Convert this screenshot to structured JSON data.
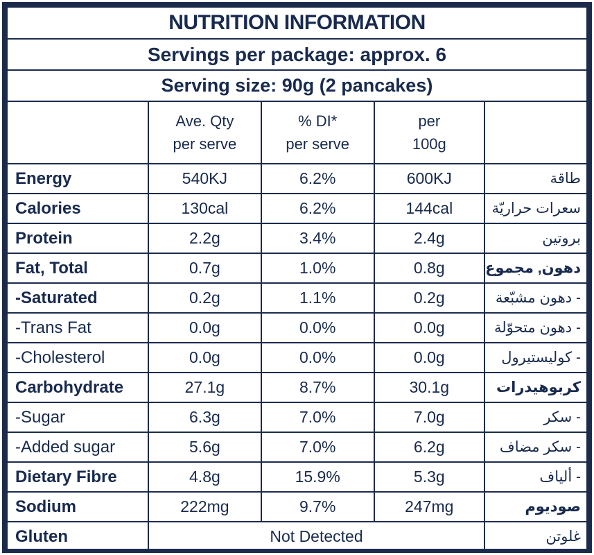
{
  "colors": {
    "ink": "#182a4e",
    "border": "#1b2b4c",
    "background": "#ffffff"
  },
  "title": "NUTRITION INFORMATION",
  "servings_line": "Servings per package: approx. 6",
  "serving_size_line": "Serving size: 90g (2 pancakes)",
  "headers": {
    "col1": [
      "Ave. Qty",
      "per serve"
    ],
    "col2": [
      "% DI*",
      "per serve"
    ],
    "col3": [
      "per",
      "100g"
    ]
  },
  "rows": [
    {
      "label": "Energy",
      "bold": true,
      "qty": "540KJ",
      "di": "6.2%",
      "per100": "600KJ",
      "ar": "طاقة",
      "ar_bold": false
    },
    {
      "label": "Calories",
      "bold": true,
      "qty": "130cal",
      "di": "6.2%",
      "per100": "144cal",
      "ar": "سعرات حراريّة",
      "ar_bold": false
    },
    {
      "label": "Protein",
      "bold": true,
      "qty": "2.2g",
      "di": "3.4%",
      "per100": "2.4g",
      "ar": "بروتين",
      "ar_bold": false
    },
    {
      "label": "Fat, Total",
      "bold": true,
      "qty": "0.7g",
      "di": "1.0%",
      "per100": "0.8g",
      "ar": "دهون, مجموع",
      "ar_bold": true
    },
    {
      "label": "-Saturated",
      "bold": true,
      "qty": "0.2g",
      "di": "1.1%",
      "per100": "0.2g",
      "ar": "- دهون مشبّعة",
      "ar_bold": false
    },
    {
      "label": "-Trans Fat",
      "bold": false,
      "qty": "0.0g",
      "di": "0.0%",
      "per100": "0.0g",
      "ar": "- دهون متحوّلة",
      "ar_bold": false
    },
    {
      "label": "-Cholesterol",
      "bold": false,
      "qty": "0.0g",
      "di": "0.0%",
      "per100": "0.0g",
      "ar": "- كوليستيرول",
      "ar_bold": false
    },
    {
      "label": "Carbohydrate",
      "bold": true,
      "qty": "27.1g",
      "di": "8.7%",
      "per100": "30.1g",
      "ar": "كربوهيدرات",
      "ar_bold": true
    },
    {
      "label": "-Sugar",
      "bold": false,
      "qty": "6.3g",
      "di": "7.0%",
      "per100": "7.0g",
      "ar": "- سكر",
      "ar_bold": false
    },
    {
      "label": "-Added sugar",
      "bold": false,
      "qty": "5.6g",
      "di": "7.0%",
      "per100": "6.2g",
      "ar": "- سكر مضاف",
      "ar_bold": false
    },
    {
      "label": "Dietary Fibre",
      "bold": true,
      "qty": "4.8g",
      "di": "15.9%",
      "per100": "5.3g",
      "ar": "- ألياف",
      "ar_bold": false
    },
    {
      "label": "Sodium",
      "bold": true,
      "qty": "222mg",
      "di": "9.7%",
      "per100": "247mg",
      "ar": "صوديوم",
      "ar_bold": true
    },
    {
      "label": "Gluten",
      "bold": true,
      "span_value": "Not Detected",
      "ar": "غلوتن",
      "ar_bold": false
    }
  ]
}
